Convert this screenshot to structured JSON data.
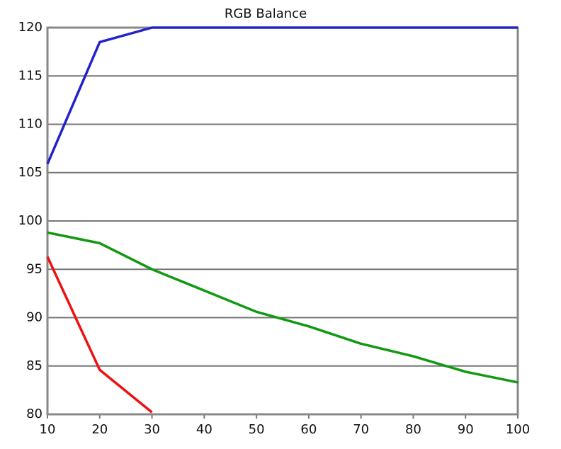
{
  "chart_data": {
    "type": "line",
    "title": "RGB Balance",
    "x": [
      10,
      20,
      30,
      40,
      50,
      60,
      70,
      80,
      90,
      100
    ],
    "series": [
      {
        "name": "Blue",
        "color": "#2222cc",
        "values": [
          105.9,
          118.5,
          120,
          120,
          120,
          120,
          120,
          120,
          120,
          120
        ]
      },
      {
        "name": "Green",
        "color": "#119911",
        "values": [
          98.8,
          97.7,
          95.0,
          92.8,
          90.6,
          89.1,
          87.3,
          86.0,
          84.4,
          83.3
        ]
      },
      {
        "name": "Red",
        "color": "#ee1111",
        "values": [
          96.3,
          84.6,
          80.2,
          null,
          null,
          null,
          null,
          null,
          null,
          null
        ]
      }
    ],
    "xlim": [
      10,
      100
    ],
    "xticks": [
      10,
      20,
      30,
      40,
      50,
      60,
      70,
      80,
      90,
      100
    ],
    "ylim": [
      80,
      120
    ],
    "yticks": [
      80,
      85,
      90,
      95,
      100,
      105,
      110,
      115,
      120
    ],
    "grid": true
  }
}
